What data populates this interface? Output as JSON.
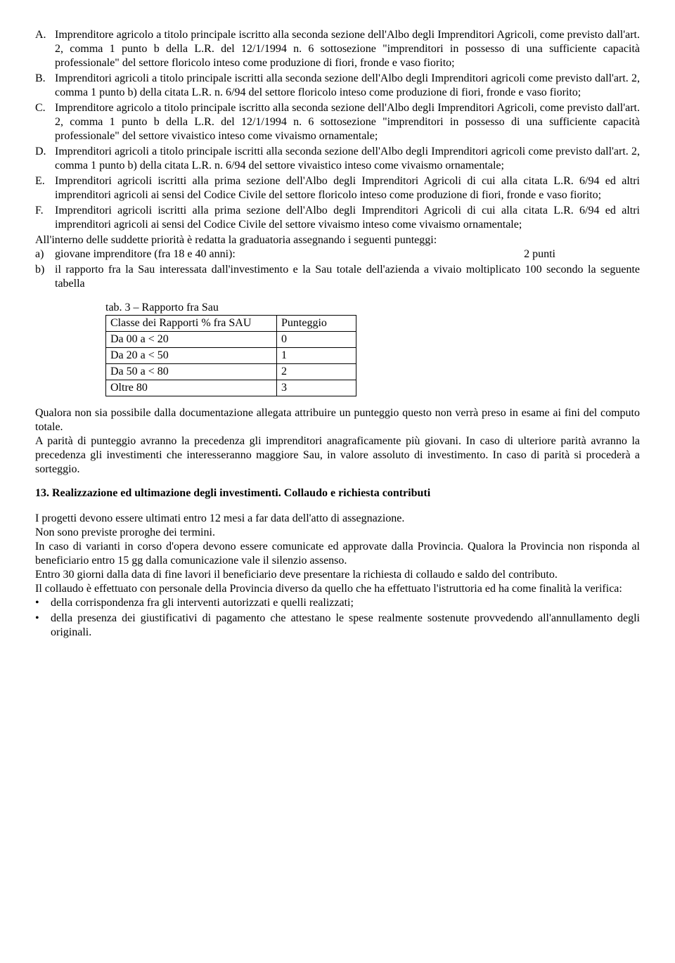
{
  "priorities": [
    {
      "marker": "A.",
      "text": "Imprenditore agricolo a titolo principale iscritto alla seconda sezione dell'Albo degli Imprenditori Agricoli, come previsto dall'art. 2, comma 1 punto b della L.R. del 12/1/1994 n. 6 sottosezione \"imprenditori in possesso di una sufficiente capacità professionale\" del settore floricolo inteso come produzione di fiori, fronde e vaso fiorito;"
    },
    {
      "marker": "B.",
      "text": "Imprenditori agricoli a titolo principale iscritti alla seconda sezione dell'Albo degli Imprenditori agricoli come previsto dall'art. 2, comma 1 punto b) della citata L.R. n. 6/94 del settore floricolo inteso come produzione di fiori, fronde e vaso fiorito;"
    },
    {
      "marker": "C.",
      "text": "Imprenditore agricolo a titolo principale iscritto alla seconda sezione dell'Albo degli Imprenditori Agricoli, come previsto dall'art. 2, comma 1 punto b della L.R. del 12/1/1994 n. 6 sottosezione \"imprenditori in possesso di una sufficiente capacità professionale\" del settore vivaistico inteso come vivaismo ornamentale;"
    },
    {
      "marker": "D.",
      "text": "Imprenditori agricoli a titolo principale iscritti alla seconda sezione dell'Albo degli Imprenditori agricoli come previsto dall'art. 2, comma 1 punto b) della citata L.R. n. 6/94 del settore vivaistico inteso come vivaismo ornamentale;"
    },
    {
      "marker": "E.",
      "text": "Imprenditori agricoli iscritti alla prima sezione dell'Albo degli Imprenditori Agricoli di cui alla citata L.R. 6/94 ed altri imprenditori agricoli ai sensi del Codice Civile del settore floricolo inteso come produzione di fiori, fronde e vaso fiorito;"
    },
    {
      "marker": "F.",
      "text": "Imprenditori agricoli iscritti alla prima sezione dell'Albo degli Imprenditori Agricoli di cui alla citata L.R. 6/94 ed altri imprenditori agricoli ai sensi del Codice Civile del settore vivaismo inteso come vivaismo ornamentale;"
    }
  ],
  "intro_line": "All'interno delle suddette priorità  è redatta la graduatoria assegnando i seguenti punteggi:",
  "criterion_a": {
    "marker": "a)",
    "label": "giovane imprenditore (fra 18 e 40 anni):",
    "points": "2 punti"
  },
  "criterion_b": {
    "marker": "b)",
    "text": "il rapporto fra la Sau interessata dall'investimento e la Sau totale dell'azienda a vivaio moltiplicato 100 secondo la seguente tabella"
  },
  "table": {
    "caption": "tab. 3 – Rapporto fra Sau",
    "headers": [
      "Classe dei Rapporti % fra SAU",
      "Punteggio"
    ],
    "rows": [
      [
        "Da 00   a < 20",
        "0"
      ],
      [
        "Da 20   a < 50",
        "1"
      ],
      [
        "Da 50   a < 80",
        "2"
      ],
      [
        "Oltre 80",
        "3"
      ]
    ]
  },
  "para1": "Qualora non sia possibile dalla documentazione allegata attribuire un punteggio questo non verrà preso in esame ai fini del computo totale.",
  "para2": "A parità di punteggio avranno la precedenza gli imprenditori anagraficamente più giovani. In caso di ulteriore parità avranno la precedenza gli investimenti che interesseranno maggiore Sau, in valore assoluto di investimento. In caso di parità si procederà a sorteggio.",
  "section13": {
    "title": "13. Realizzazione ed ultimazione degli investimenti. Collaudo e richiesta contributi",
    "p1": "I progetti devono essere ultimati entro 12 mesi a far data dell'atto di assegnazione.",
    "p2": "Non sono previste proroghe dei termini.",
    "p3": "In caso di varianti in corso d'opera devono essere comunicate ed approvate dalla Provincia. Qualora la Provincia non risponda al beneficiario entro 15 gg dalla comunicazione vale il silenzio assenso.",
    "p4": "Entro 30 giorni dalla data di fine lavori il beneficiario deve presentare la richiesta di collaudo e saldo del contributo.",
    "p5": "Il collaudo è effettuato con personale della Provincia diverso da quello che ha effettuato l'istruttoria ed ha come finalità la verifica:",
    "bullets": [
      "della corrispondenza fra gli interventi autorizzati e quelli realizzati;",
      "della presenza dei giustificativi di pagamento che attestano le spese realmente sostenute provvedendo all'annullamento degli originali."
    ]
  }
}
